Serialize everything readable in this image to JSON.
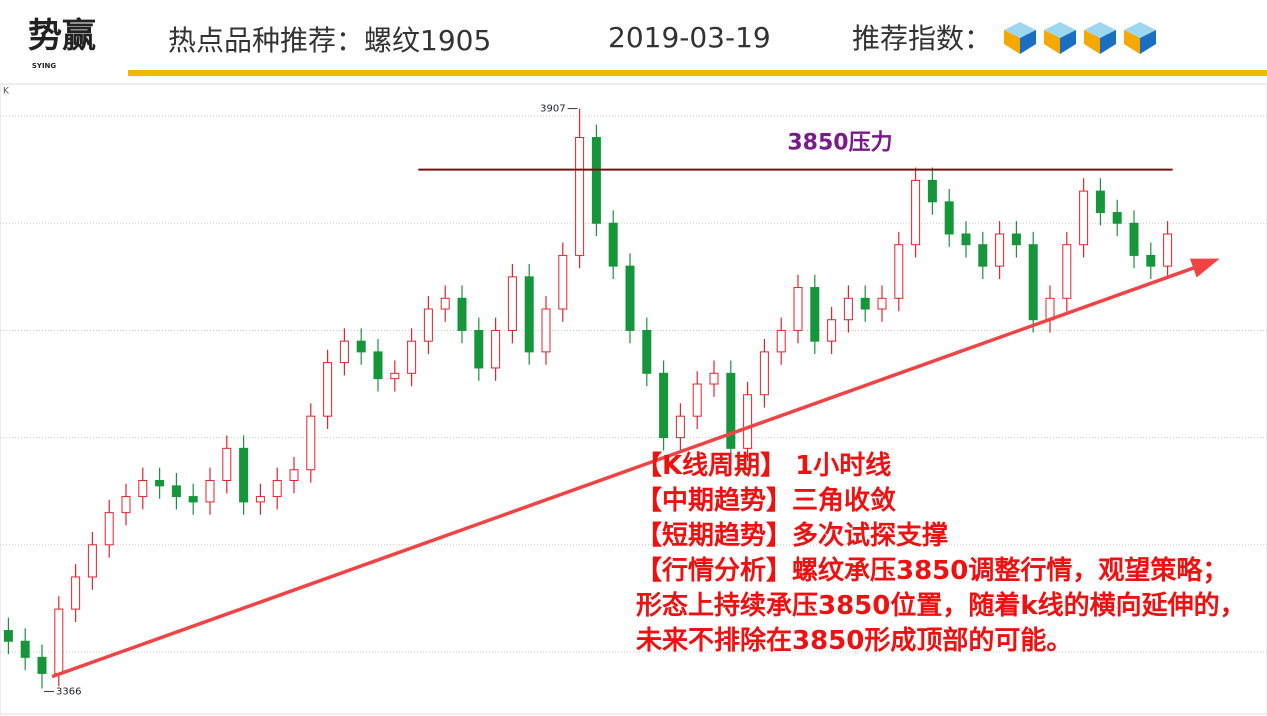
{
  "header": {
    "logo": "势赢",
    "logo_sub": "SYING",
    "title": "热点品种推荐：螺纹1905",
    "date": "2019-03-19",
    "rating_label": "推荐指数：",
    "rating": 4
  },
  "chart_data": {
    "type": "candlestick",
    "axis_label": "K",
    "open": [
      3420,
      3410,
      3395,
      3380,
      3440,
      3470,
      3500,
      3530,
      3545,
      3560,
      3555,
      3545,
      3540,
      3560,
      3590,
      3540,
      3545,
      3560,
      3570,
      3620,
      3670,
      3690,
      3680,
      3655,
      3660,
      3690,
      3720,
      3730,
      3700,
      3665,
      3700,
      3750,
      3680,
      3720,
      3770,
      3880,
      3800,
      3760,
      3700,
      3660,
      3600,
      3620,
      3650,
      3660,
      3590,
      3640,
      3680,
      3700,
      3740,
      3690,
      3710,
      3730,
      3720,
      3730,
      3780,
      3840,
      3820,
      3790,
      3780,
      3760,
      3790,
      3780,
      3710,
      3730,
      3780,
      3830,
      3810,
      3800,
      3770,
      3760
    ],
    "high": [
      3432,
      3422,
      3407,
      3452,
      3482,
      3512,
      3542,
      3557,
      3572,
      3572,
      3567,
      3557,
      3572,
      3602,
      3602,
      3557,
      3572,
      3582,
      3632,
      3682,
      3702,
      3702,
      3692,
      3672,
      3702,
      3732,
      3742,
      3742,
      3712,
      3712,
      3762,
      3762,
      3732,
      3782,
      3907,
      3892,
      3812,
      3772,
      3712,
      3672,
      3632,
      3662,
      3672,
      3672,
      3652,
      3692,
      3712,
      3752,
      3752,
      3722,
      3742,
      3742,
      3742,
      3792,
      3852,
      3852,
      3832,
      3802,
      3792,
      3802,
      3802,
      3792,
      3742,
      3792,
      3842,
      3842,
      3822,
      3812,
      3782,
      3802
    ],
    "low": [
      3398,
      3383,
      3366,
      3368,
      3428,
      3458,
      3488,
      3518,
      3533,
      3543,
      3533,
      3528,
      3528,
      3548,
      3528,
      3528,
      3533,
      3548,
      3558,
      3608,
      3658,
      3668,
      3643,
      3643,
      3648,
      3678,
      3708,
      3688,
      3653,
      3653,
      3688,
      3668,
      3668,
      3708,
      3758,
      3788,
      3748,
      3688,
      3648,
      3588,
      3588,
      3608,
      3638,
      3578,
      3578,
      3628,
      3668,
      3688,
      3678,
      3678,
      3698,
      3708,
      3708,
      3718,
      3768,
      3808,
      3778,
      3768,
      3748,
      3748,
      3768,
      3698,
      3698,
      3718,
      3768,
      3798,
      3788,
      3758,
      3748,
      3748
    ],
    "close": [
      3410,
      3395,
      3380,
      3440,
      3470,
      3500,
      3530,
      3545,
      3560,
      3555,
      3545,
      3540,
      3560,
      3590,
      3540,
      3545,
      3560,
      3570,
      3620,
      3670,
      3690,
      3680,
      3655,
      3660,
      3690,
      3720,
      3730,
      3700,
      3665,
      3700,
      3750,
      3680,
      3720,
      3770,
      3880,
      3800,
      3760,
      3700,
      3660,
      3600,
      3620,
      3650,
      3660,
      3590,
      3640,
      3680,
      3700,
      3740,
      3690,
      3710,
      3730,
      3720,
      3730,
      3780,
      3840,
      3820,
      3790,
      3780,
      3760,
      3790,
      3780,
      3710,
      3730,
      3780,
      3830,
      3810,
      3800,
      3770,
      3760,
      3790
    ],
    "up_color": "#e8232a",
    "down_color": "#16963a",
    "xlim": [
      -0.5,
      74.5
    ],
    "ylim": [
      3344,
      3929
    ],
    "yticks": [
      3400,
      3500,
      3600,
      3700,
      3800,
      3900
    ],
    "grid": true,
    "resistance": {
      "label": "3850压力",
      "value": 3850,
      "x": [
        24.4,
        69.3
      ],
      "color": "#7a1010"
    },
    "trendline": {
      "x": [
        2.6,
        72.1
      ],
      "values": [
        3377,
        3767
      ],
      "color": "#f04444"
    },
    "analysis": [
      "【K线周期】 1小时线",
      "【中期趋势】三角收敛",
      "【短期趋势】多次试探支撑",
      "【行情分析】螺纹承压3850调整行情，观望策略；形态上持续承压3850位置，随着k线的横向延伸的，未来不排除在3850形成顶部的可能。"
    ]
  }
}
